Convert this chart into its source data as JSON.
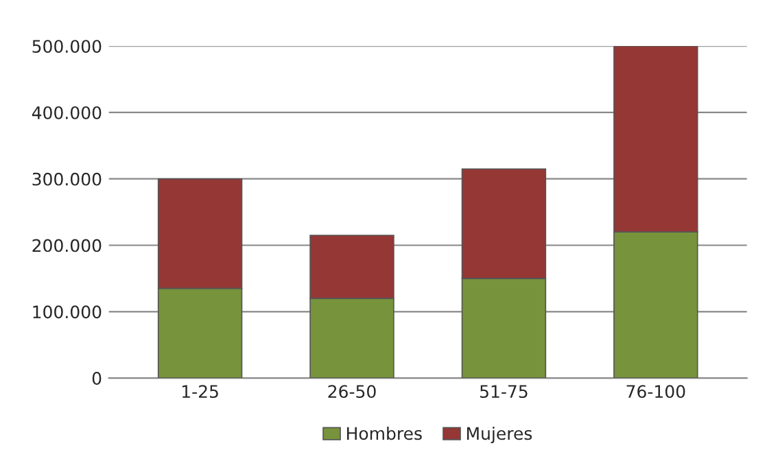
{
  "chart_data": {
    "type": "bar",
    "stacked": true,
    "categories": [
      "1-25",
      "26-50",
      "51-75",
      "76-100"
    ],
    "series": [
      {
        "name": "Hombres",
        "color": "#77933c",
        "values": [
          135000,
          120000,
          150000,
          220000
        ]
      },
      {
        "name": "Mujeres",
        "color": "#953735",
        "values": [
          165000,
          95000,
          165000,
          280000
        ]
      }
    ],
    "ylim": [
      0,
      500000
    ],
    "yticks": [
      {
        "value": 0,
        "label": "0"
      },
      {
        "value": 100000,
        "label": "100.000"
      },
      {
        "value": 200000,
        "label": "200.000"
      },
      {
        "value": 300000,
        "label": "300.000"
      },
      {
        "value": 400000,
        "label": "400.000"
      },
      {
        "value": 500000,
        "label": "500.000"
      }
    ],
    "grid": "y",
    "legend": "bottom"
  }
}
